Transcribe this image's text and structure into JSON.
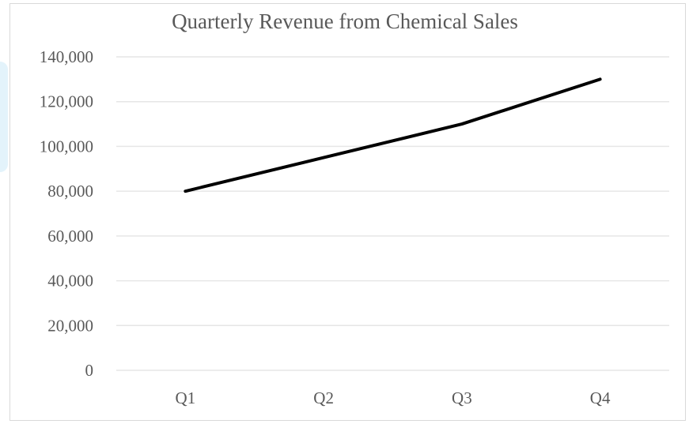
{
  "chart_data": {
    "type": "line",
    "title": "Quarterly Revenue from Chemical Sales",
    "xlabel": "",
    "ylabel": "",
    "categories": [
      "Q1",
      "Q2",
      "Q3",
      "Q4"
    ],
    "series": [
      {
        "values": [
          80000,
          95000,
          110000,
          130000
        ],
        "color": "#000000"
      }
    ],
    "ylim": [
      0,
      140000
    ],
    "yticks": [
      0,
      20000,
      40000,
      60000,
      80000,
      100000,
      120000,
      140000
    ],
    "ytick_labels": [
      "0",
      "20,000",
      "40,000",
      "60,000",
      "80,000",
      "100,000",
      "120,000",
      "140,000"
    ],
    "grid": true,
    "legend": "none",
    "colors": {
      "grid": "#e6e6e6",
      "text": "#595959",
      "line": "#000000"
    }
  }
}
